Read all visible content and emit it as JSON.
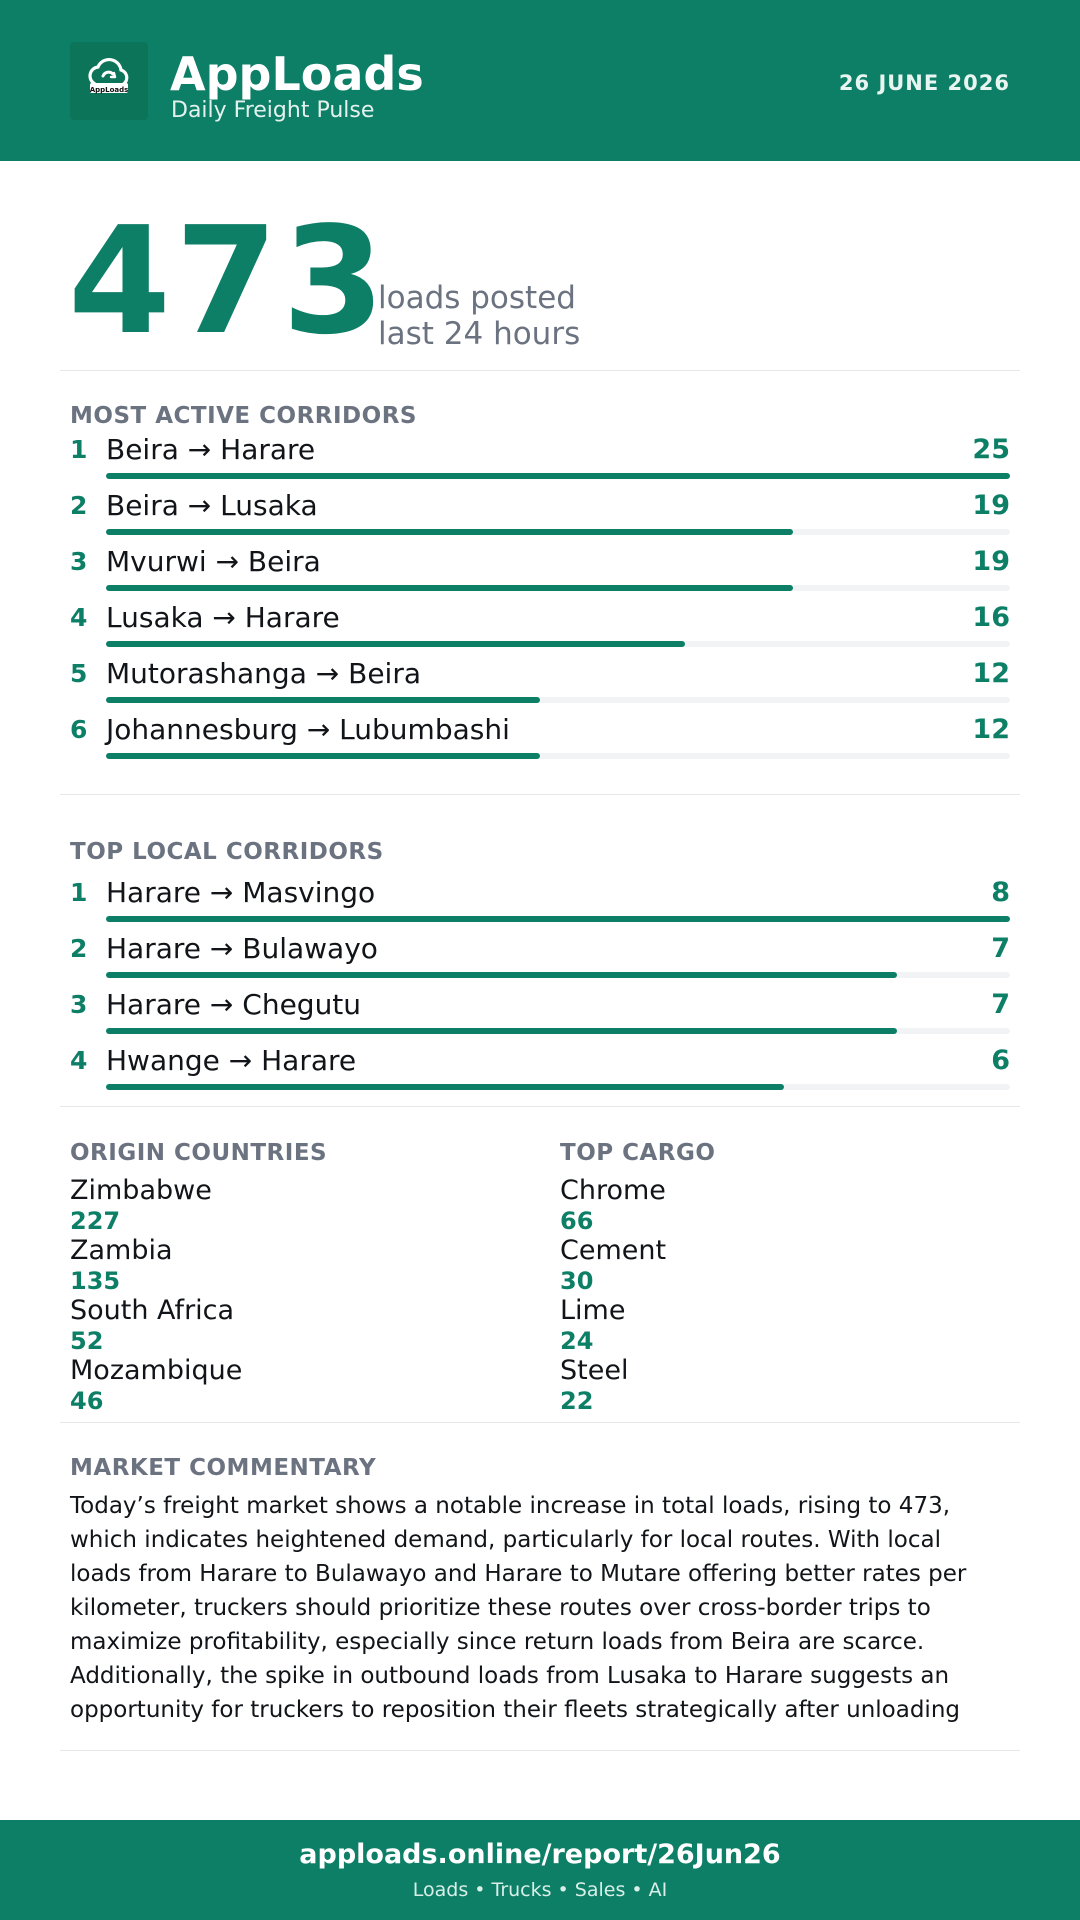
{
  "header": {
    "logo_text": "AppLoads",
    "brand": "AppLoads",
    "tagline": "Daily Freight Pulse",
    "date": "26 JUNE 2026"
  },
  "summary": {
    "total_loads": "473",
    "line1": "loads posted",
    "line2": "last 24 hours"
  },
  "most_active": {
    "title": "MOST ACTIVE CORRIDORS",
    "max": 25,
    "items": [
      {
        "rank": "1",
        "route": "Beira → Harare",
        "value": "25",
        "n": 25
      },
      {
        "rank": "2",
        "route": "Beira → Lusaka",
        "value": "19",
        "n": 19
      },
      {
        "rank": "3",
        "route": "Mvurwi → Beira",
        "value": "19",
        "n": 19
      },
      {
        "rank": "4",
        "route": "Lusaka → Harare",
        "value": "16",
        "n": 16
      },
      {
        "rank": "5",
        "route": "Mutorashanga → Beira",
        "value": "12",
        "n": 12
      },
      {
        "rank": "6",
        "route": "Johannesburg → Lubumbashi",
        "value": "12",
        "n": 12
      }
    ]
  },
  "local": {
    "title": "TOP LOCAL CORRIDORS",
    "max": 8,
    "items": [
      {
        "rank": "1",
        "route": "Harare → Masvingo",
        "value": "8",
        "n": 8
      },
      {
        "rank": "2",
        "route": "Harare → Bulawayo",
        "value": "7",
        "n": 7
      },
      {
        "rank": "3",
        "route": "Harare → Chegutu",
        "value": "7",
        "n": 7
      },
      {
        "rank": "4",
        "route": "Hwange → Harare",
        "value": "6",
        "n": 6
      }
    ]
  },
  "origin": {
    "title": "ORIGIN COUNTRIES",
    "items": [
      {
        "name": "Zimbabwe",
        "value": "227"
      },
      {
        "name": "Zambia",
        "value": "135"
      },
      {
        "name": "South Africa",
        "value": "52"
      },
      {
        "name": "Mozambique",
        "value": "46"
      }
    ]
  },
  "cargo": {
    "title": "TOP CARGO",
    "items": [
      {
        "name": "Chrome",
        "value": "66"
      },
      {
        "name": "Cement",
        "value": "30"
      },
      {
        "name": "Lime",
        "value": "24"
      },
      {
        "name": "Steel",
        "value": "22"
      }
    ]
  },
  "commentary": {
    "title": "MARKET COMMENTARY",
    "lines": [
      "Today’s freight market shows a notable increase in total loads, rising to 473,",
      "which indicates heightened demand, particularly for local routes. With local",
      "loads from Harare to Bulawayo and Harare to Mutare offering better rates per",
      "kilometer, truckers should prioritize these routes over cross-border trips to",
      "maximize profitability, especially since return loads from Beira are scarce.",
      "Additionally, the spike in outbound loads from Lusaka to Harare suggests an",
      "opportunity for truckers to reposition their fleets strategically after unloading"
    ]
  },
  "footer": {
    "url": "apploads.online/report/26Jun26",
    "sub": "Loads • Trucks • Sales • AI"
  },
  "colors": {
    "brand_green": "#0e7f67",
    "muted": "#6b7280",
    "track": "#f1f3f5"
  }
}
